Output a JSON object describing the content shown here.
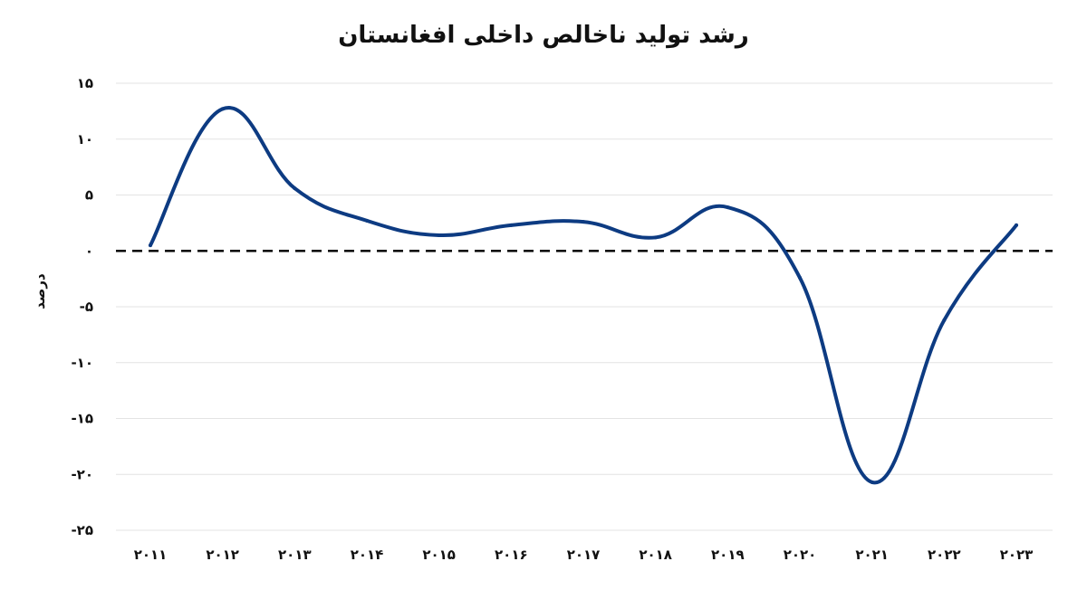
{
  "chart_data": {
    "type": "line",
    "title": "رشد تولید ناخالص داخلی افغانستان",
    "xlabel": "",
    "ylabel": "درصد",
    "x": [
      "۲۰۱۱",
      "۲۰۱۲",
      "۲۰۱۳",
      "۲۰۱۴",
      "۲۰۱۵",
      "۲۰۱۶",
      "۲۰۱۷",
      "۲۰۱۸",
      "۲۰۱۹",
      "۲۰۲۰",
      "۲۰۲۱",
      "۲۰۲۲",
      "۲۰۲۳"
    ],
    "series": [
      {
        "values": [
          0.5,
          12.7,
          5.6,
          2.7,
          1.4,
          2.3,
          2.6,
          1.2,
          3.9,
          -2.4,
          -20.7,
          -6.2,
          2.3
        ],
        "color": "#0d3b82"
      }
    ],
    "ylim": [
      -25,
      15
    ],
    "yticks": [
      15,
      10,
      5,
      0,
      -5,
      -10,
      -15,
      -20,
      -25
    ],
    "ytick_labels": [
      "۱۵",
      "۱۰",
      "۵",
      "۰",
      "-۵",
      "-۱۰",
      "-۱۵",
      "-۲۰",
      "-۲۵"
    ],
    "zero_line": {
      "value": 0,
      "style": "dashed",
      "color": "#000000"
    },
    "grid": true,
    "grid_color": "#e3e3e3"
  }
}
